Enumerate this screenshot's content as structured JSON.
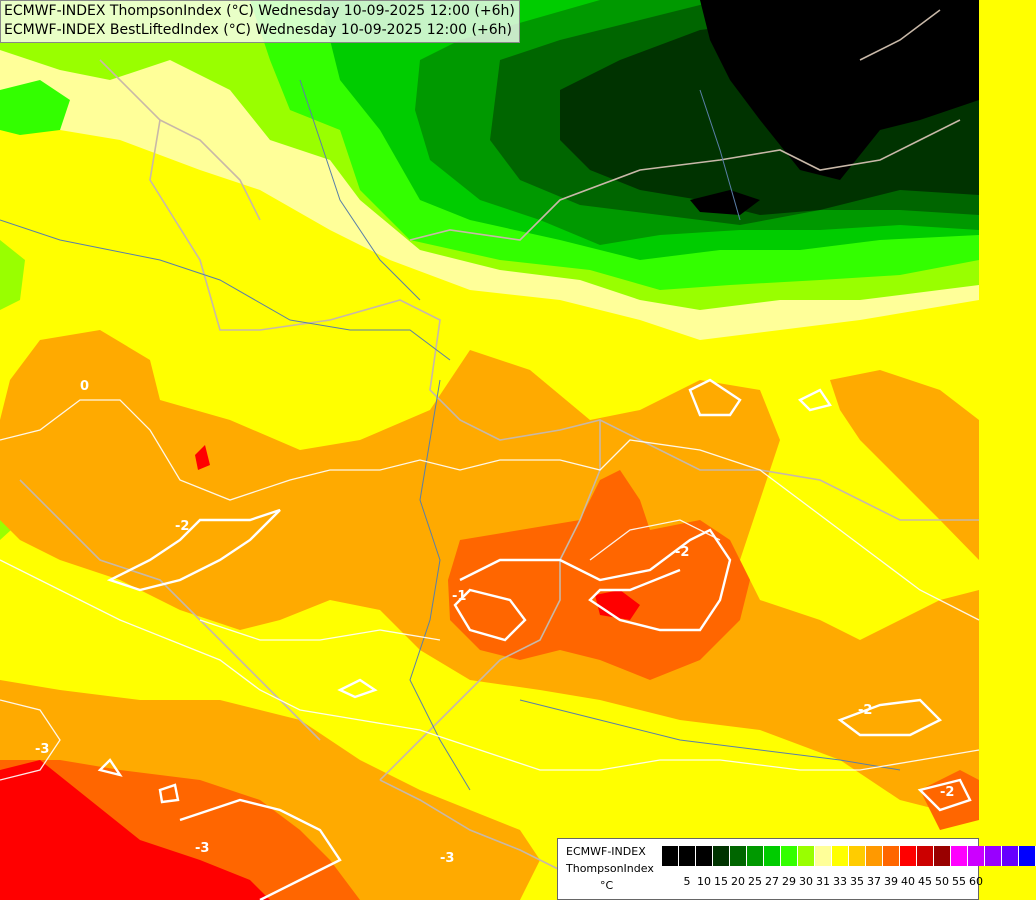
{
  "header": {
    "line1": "ECMWF-INDEX ThompsonIndex (°C) Wednesday 10-09-2025 12:00 (+6h)",
    "line2": "ECMWF-INDEX BestLiftedIndex (°C) Wednesday 10-09-2025 12:00 (+6h)"
  },
  "legend": {
    "model": "ECMWF-INDEX",
    "variable": "ThompsonIndex",
    "unit": "°C",
    "ticks": [
      "5",
      "10",
      "15",
      "20",
      "25",
      "27",
      "29",
      "30",
      "31",
      "33",
      "35",
      "37",
      "39",
      "40",
      "45",
      "50",
      "55",
      "60"
    ],
    "colors": [
      "#000000",
      "#000000",
      "#000000",
      "#003300",
      "#006600",
      "#009900",
      "#00cc00",
      "#33ff00",
      "#99ff00",
      "#ffff99",
      "#ffff00",
      "#ffcc00",
      "#ff9900",
      "#ff6600",
      "#ff0000",
      "#cc0000",
      "#990000",
      "#ff00ff",
      "#cc00ff",
      "#9900ff",
      "#6600ff",
      "#0000ff"
    ]
  },
  "map": {
    "contour_labels": [
      {
        "text": "-2",
        "kind": "isoline"
      },
      {
        "text": "-2",
        "kind": "isoline"
      },
      {
        "text": "-2",
        "kind": "isoline"
      },
      {
        "text": "-2",
        "kind": "isoline"
      },
      {
        "text": "-3",
        "kind": "isoline"
      },
      {
        "text": "-3",
        "kind": "isoline"
      },
      {
        "text": "-3",
        "kind": "isoline"
      },
      {
        "text": "-1",
        "kind": "isoline"
      },
      {
        "text": "0",
        "kind": "isoline"
      }
    ]
  }
}
